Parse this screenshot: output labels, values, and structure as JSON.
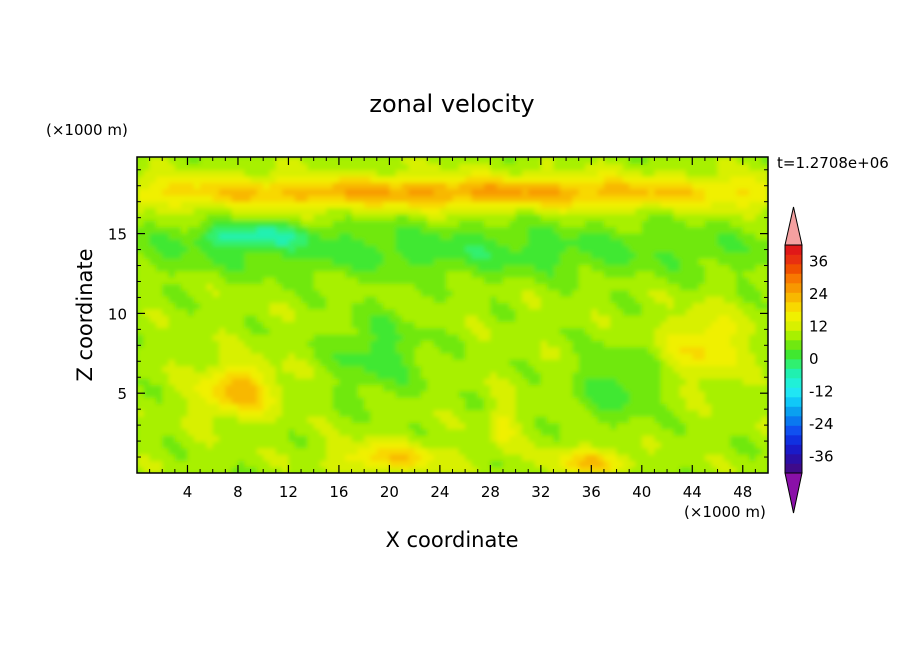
{
  "chart_data": {
    "type": "heatmap",
    "title": "zonal velocity",
    "xlabel": "X coordinate",
    "ylabel": "Z coordinate",
    "x_unit": "(×1000 m)",
    "y_unit": "(×1000 m)",
    "time_label": "t=1.2708e+06",
    "xlim": [
      0,
      50
    ],
    "ylim": [
      0,
      19.8
    ],
    "x_ticks": [
      4,
      8,
      12,
      16,
      20,
      24,
      28,
      32,
      36,
      40,
      44,
      48
    ],
    "y_ticks": [
      5,
      10,
      15
    ],
    "colorbar": {
      "levels": [
        -42,
        -39,
        -36,
        -33,
        -30,
        -27,
        -24,
        -21,
        -18,
        -15,
        -12,
        -9,
        -6,
        -3,
        0,
        3,
        6,
        9,
        12,
        15,
        18,
        21,
        24,
        27,
        30,
        33,
        36,
        39,
        42
      ],
      "colors": [
        "#3f0a8a",
        "#2b0fa6",
        "#1a1ac8",
        "#1030e0",
        "#1050f0",
        "#0a78f0",
        "#0aa0f0",
        "#10c8f8",
        "#20e6f4",
        "#20f0d8",
        "#20f0b0",
        "#30f070",
        "#40e830",
        "#70e810",
        "#a8f000",
        "#d8f000",
        "#f0f000",
        "#f8d800",
        "#f8b800",
        "#f89800",
        "#f87800",
        "#f05000",
        "#e83010",
        "#e01818"
      ],
      "tick_labels": [
        "36",
        "24",
        "12",
        "0",
        "-12",
        "-24",
        "-36"
      ],
      "tick_values": [
        36,
        24,
        12,
        0,
        -12,
        -24,
        -36
      ],
      "over_color": "#f4a0a0",
      "under_color": "#8a10a8"
    },
    "features": [
      {
        "x": 25,
        "z": 17.6,
        "sx": 30,
        "sz": 1.0,
        "u": 14
      },
      {
        "x": 9,
        "z": 14.9,
        "sx": 4,
        "sz": 0.7,
        "u": -10
      },
      {
        "x": 25,
        "z": 14.0,
        "sx": 30,
        "sz": 1.7,
        "u": -6
      },
      {
        "x": 8,
        "z": 5.2,
        "sx": 3,
        "sz": 1.6,
        "u": 12
      },
      {
        "x": 45,
        "z": 8.0,
        "sx": 3,
        "sz": 2.0,
        "u": 8
      },
      {
        "x": 20,
        "z": 1.0,
        "sx": 4,
        "sz": 0.9,
        "u": 10
      },
      {
        "x": 36,
        "z": 0.7,
        "sx": 3,
        "sz": 0.8,
        "u": 11
      },
      {
        "x": 19,
        "z": 7.5,
        "sx": 3.5,
        "sz": 2.5,
        "u": -6
      },
      {
        "x": 38,
        "z": 5.5,
        "sx": 3,
        "sz": 2.2,
        "u": -6
      },
      {
        "x": 29,
        "z": 3.0,
        "sx": 1,
        "sz": 1.5,
        "u": 6
      }
    ]
  }
}
